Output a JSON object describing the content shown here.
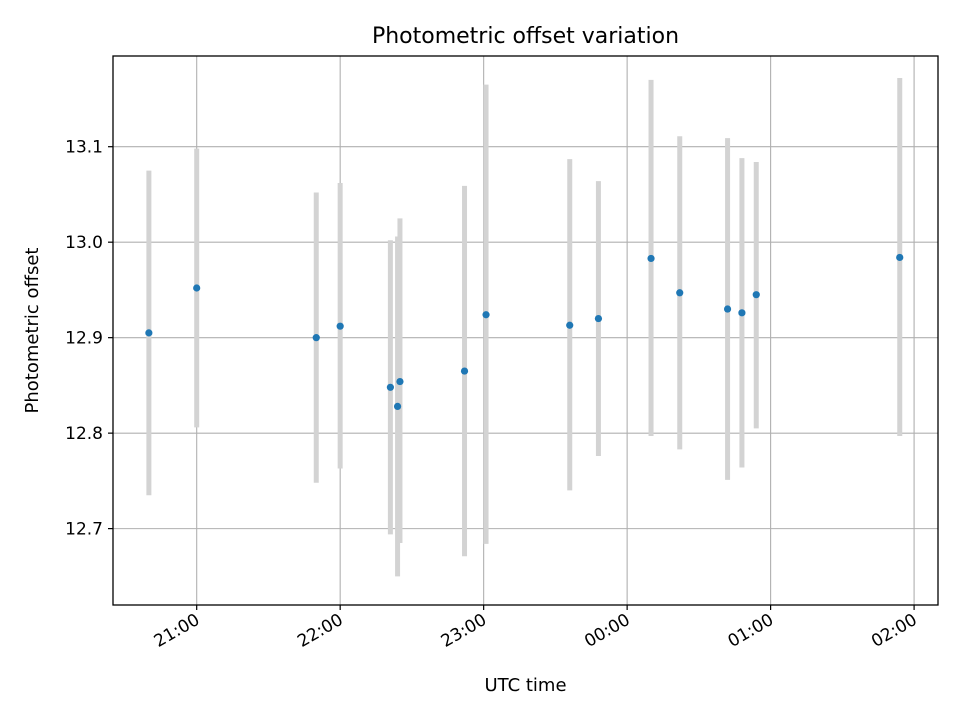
{
  "chart_data": {
    "type": "scatter",
    "title": "Photometric offset variation",
    "xlabel": "UTC time",
    "ylabel": "Photometric offset",
    "x_unit": "UTC time",
    "xlim": [
      "20:25",
      "02:10"
    ],
    "ylim": [
      12.62,
      13.195
    ],
    "x_ticks": [
      "21:00",
      "22:00",
      "23:00",
      "00:00",
      "01:00",
      "02:00"
    ],
    "y_ticks": [
      12.7,
      12.8,
      12.9,
      13.0,
      13.1
    ],
    "y_tick_labels": [
      "12.7",
      "12.8",
      "12.9",
      "13.0",
      "13.1"
    ],
    "grid": true,
    "points": [
      {
        "x": "20:40",
        "y": 12.905,
        "y_low": 12.735,
        "y_high": 13.075
      },
      {
        "x": "21:00",
        "y": 12.952,
        "y_low": 12.806,
        "y_high": 13.098
      },
      {
        "x": "21:50",
        "y": 12.9,
        "y_low": 12.748,
        "y_high": 13.052
      },
      {
        "x": "22:00",
        "y": 12.912,
        "y_low": 12.763,
        "y_high": 13.062
      },
      {
        "x": "22:21",
        "y": 12.848,
        "y_low": 12.694,
        "y_high": 13.002
      },
      {
        "x": "22:24",
        "y": 12.828,
        "y_low": 12.65,
        "y_high": 13.006
      },
      {
        "x": "22:25",
        "y": 12.854,
        "y_low": 12.685,
        "y_high": 13.025
      },
      {
        "x": "22:52",
        "y": 12.865,
        "y_low": 12.671,
        "y_high": 13.059
      },
      {
        "x": "23:01",
        "y": 12.924,
        "y_low": 12.684,
        "y_high": 13.165
      },
      {
        "x": "23:36",
        "y": 12.913,
        "y_low": 12.74,
        "y_high": 13.087
      },
      {
        "x": "23:48",
        "y": 12.92,
        "y_low": 12.776,
        "y_high": 13.064
      },
      {
        "x": "00:10",
        "y": 12.983,
        "y_low": 12.797,
        "y_high": 13.17
      },
      {
        "x": "00:22",
        "y": 12.947,
        "y_low": 12.783,
        "y_high": 13.111
      },
      {
        "x": "00:42",
        "y": 12.93,
        "y_low": 12.751,
        "y_high": 13.109
      },
      {
        "x": "00:48",
        "y": 12.926,
        "y_low": 12.764,
        "y_high": 13.088
      },
      {
        "x": "00:54",
        "y": 12.945,
        "y_low": 12.805,
        "y_high": 13.084
      },
      {
        "x": "01:54",
        "y": 12.984,
        "y_low": 12.797,
        "y_high": 13.172
      }
    ],
    "colors": {
      "marker": "#1f77b4",
      "errorbar": "#d3d3d3",
      "grid": "#b0b0b0",
      "axes": "#000000"
    }
  }
}
